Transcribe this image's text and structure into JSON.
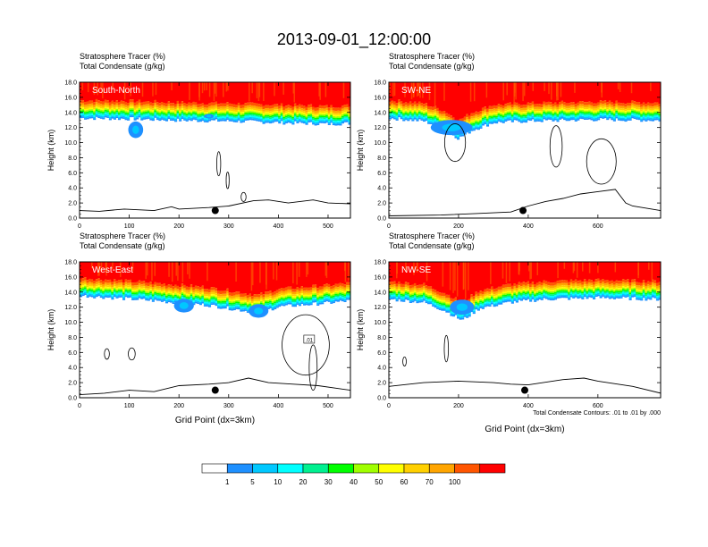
{
  "title": "2013-09-01_12:00:00",
  "footnote": "Total Condensate Contours: .01 to .01 by .000",
  "colors": {
    "levels": [
      "#ffffff",
      "#1e90ff",
      "#00c8ff",
      "#00ffff",
      "#00f090",
      "#00ff00",
      "#a0ff00",
      "#ffff00",
      "#ffd000",
      "#ffa500",
      "#ff5500",
      "#ff0000"
    ],
    "contour": "#000000",
    "terrain": "#000000",
    "marker": "#000000"
  },
  "colorbar": {
    "labels": [
      "1",
      "5",
      "10",
      "20",
      "30",
      "40",
      "50",
      "60",
      "70",
      "100"
    ]
  },
  "chart_data": [
    {
      "type": "heatmap",
      "panel_label": "South-North",
      "header_line1": "Stratosphere Tracer   (%)",
      "header_line2": "Total Condensate   (g/kg)",
      "ylabel": "Height (km)",
      "xlabel": "",
      "xlim": [
        0,
        545
      ],
      "ylim": [
        0,
        18
      ],
      "xticks": [
        "0",
        "100",
        "200",
        "300",
        "400",
        "500"
      ],
      "xtick_values": [
        0,
        100,
        200,
        300,
        400,
        500
      ],
      "yticks": [
        "0.0",
        "2.0",
        "4.0",
        "6.0",
        "8.0",
        "10.0",
        "12.0",
        "14.0",
        "16.0",
        "18.0"
      ],
      "tropopause_km": [
        [
          0,
          14.2
        ],
        [
          100,
          14.1
        ],
        [
          200,
          13.9
        ],
        [
          300,
          13.8
        ],
        [
          400,
          13.6
        ],
        [
          500,
          13.4
        ],
        [
          545,
          13.5
        ]
      ],
      "blobs": [
        {
          "x": 113,
          "y": 11.7,
          "w": 30,
          "h": 2.2
        },
        {
          "x": 260,
          "y": 13.5,
          "w": 20,
          "h": 0.6
        }
      ],
      "terrain_km": [
        [
          0,
          1.0
        ],
        [
          40,
          0.9
        ],
        [
          90,
          1.2
        ],
        [
          150,
          1.0
        ],
        [
          185,
          1.5
        ],
        [
          200,
          1.2
        ],
        [
          260,
          1.4
        ],
        [
          300,
          1.6
        ],
        [
          350,
          2.3
        ],
        [
          380,
          2.4
        ],
        [
          420,
          2.0
        ],
        [
          470,
          2.4
        ],
        [
          500,
          2.0
        ],
        [
          545,
          1.9
        ]
      ],
      "contours": [
        {
          "x": 280,
          "y": 7.2,
          "w": 8,
          "h": 3.2
        },
        {
          "x": 298,
          "y": 5.0,
          "w": 6,
          "h": 2.2
        },
        {
          "x": 330,
          "y": 2.8,
          "w": 10,
          "h": 1.2
        }
      ],
      "marker": {
        "x": 273,
        "y": 1.0
      }
    },
    {
      "type": "heatmap",
      "panel_label": "SW-NE",
      "header_line1": "Stratosphere Tracer   (%)",
      "header_line2": "Total Condensate   (g/kg)",
      "ylabel": "Height (km)",
      "xlabel": "",
      "xlim": [
        0,
        780
      ],
      "ylim": [
        0,
        18
      ],
      "xticks": [
        "0",
        "200",
        "400",
        "600"
      ],
      "xtick_values": [
        0,
        200,
        400,
        600
      ],
      "yticks": [
        "0.0",
        "2.0",
        "4.0",
        "6.0",
        "8.0",
        "10.0",
        "12.0",
        "14.0",
        "16.0",
        "18.0"
      ],
      "tropopause_km": [
        [
          0,
          14.2
        ],
        [
          100,
          13.8
        ],
        [
          160,
          12.8
        ],
        [
          200,
          11.5
        ],
        [
          240,
          12.6
        ],
        [
          300,
          13.6
        ],
        [
          400,
          13.8
        ],
        [
          600,
          14.0
        ],
        [
          780,
          13.9
        ]
      ],
      "blobs": [
        {
          "x": 180,
          "y": 12.0,
          "w": 120,
          "h": 2.0
        }
      ],
      "terrain_km": [
        [
          0,
          0.3
        ],
        [
          150,
          0.4
        ],
        [
          250,
          0.6
        ],
        [
          350,
          0.8
        ],
        [
          400,
          1.6
        ],
        [
          450,
          2.2
        ],
        [
          500,
          2.6
        ],
        [
          550,
          3.2
        ],
        [
          600,
          3.5
        ],
        [
          650,
          3.8
        ],
        [
          680,
          2.0
        ],
        [
          700,
          1.6
        ],
        [
          780,
          1.0
        ]
      ],
      "contours": [
        {
          "x": 190,
          "y": 10.0,
          "w": 60,
          "h": 5.0
        },
        {
          "x": 480,
          "y": 9.5,
          "w": 35,
          "h": 5.5
        },
        {
          "x": 610,
          "y": 7.5,
          "w": 85,
          "h": 6.0
        }
      ],
      "marker": {
        "x": 385,
        "y": 1.0
      }
    },
    {
      "type": "heatmap",
      "panel_label": "West-East",
      "header_line1": "Stratosphere Tracer   (%)",
      "header_line2": "Total Condensate   (g/kg)",
      "ylabel": "Height (km)",
      "xlabel": "Grid Point (dx=3km)",
      "xlim": [
        0,
        545
      ],
      "ylim": [
        0,
        18
      ],
      "xticks": [
        "0",
        "100",
        "200",
        "300",
        "400",
        "500"
      ],
      "xtick_values": [
        0,
        100,
        200,
        300,
        400,
        500
      ],
      "yticks": [
        "0.0",
        "2.0",
        "4.0",
        "6.0",
        "8.0",
        "10.0",
        "12.0",
        "14.0",
        "16.0",
        "18.0"
      ],
      "tropopause_km": [
        [
          0,
          14.5
        ],
        [
          150,
          13.8
        ],
        [
          260,
          13.2
        ],
        [
          360,
          12.2
        ],
        [
          400,
          13.0
        ],
        [
          500,
          13.5
        ],
        [
          545,
          13.8
        ]
      ],
      "blobs": [
        {
          "x": 210,
          "y": 12.2,
          "w": 40,
          "h": 1.8
        },
        {
          "x": 360,
          "y": 11.5,
          "w": 40,
          "h": 1.8
        }
      ],
      "terrain_km": [
        [
          0,
          0.4
        ],
        [
          50,
          0.6
        ],
        [
          100,
          1.0
        ],
        [
          150,
          0.8
        ],
        [
          200,
          1.6
        ],
        [
          260,
          1.8
        ],
        [
          300,
          2.0
        ],
        [
          340,
          2.6
        ],
        [
          380,
          2.0
        ],
        [
          430,
          1.8
        ],
        [
          480,
          1.6
        ],
        [
          545,
          1.0
        ]
      ],
      "contours": [
        {
          "x": 455,
          "y": 7.0,
          "w": 95,
          "h": 8.0
        },
        {
          "x": 470,
          "y": 4.0,
          "w": 16,
          "h": 6.0
        },
        {
          "x": 105,
          "y": 5.8,
          "w": 14,
          "h": 1.6
        },
        {
          "x": 55,
          "y": 5.8,
          "w": 10,
          "h": 1.4
        }
      ],
      "contour_label": {
        "text": ".01",
        "x": 462,
        "y": 7.7
      },
      "marker": {
        "x": 273,
        "y": 1.0
      }
    },
    {
      "type": "heatmap",
      "panel_label": "NW-SE",
      "header_line1": "Stratosphere Tracer   (%)",
      "header_line2": "Total Condensate   (g/kg)",
      "ylabel": "Height (km)",
      "xlabel": "Grid Point (dx=3km)",
      "xlim": [
        0,
        780
      ],
      "ylim": [
        0,
        18
      ],
      "xticks": [
        "0",
        "200",
        "400",
        "600"
      ],
      "xtick_values": [
        0,
        200,
        400,
        600
      ],
      "yticks": [
        "0.0",
        "2.0",
        "4.0",
        "6.0",
        "8.0",
        "10.0",
        "12.0",
        "14.0",
        "16.0",
        "18.0"
      ],
      "tropopause_km": [
        [
          0,
          14.0
        ],
        [
          100,
          13.6
        ],
        [
          160,
          12.5
        ],
        [
          210,
          11.2
        ],
        [
          260,
          12.8
        ],
        [
          350,
          13.6
        ],
        [
          450,
          14.0
        ],
        [
          600,
          14.2
        ],
        [
          780,
          14.0
        ]
      ],
      "blobs": [
        {
          "x": 210,
          "y": 12.0,
          "w": 70,
          "h": 2.0
        }
      ],
      "terrain_km": [
        [
          0,
          1.5
        ],
        [
          100,
          2.0
        ],
        [
          200,
          2.2
        ],
        [
          300,
          2.0
        ],
        [
          350,
          1.8
        ],
        [
          400,
          1.7
        ],
        [
          500,
          2.4
        ],
        [
          560,
          2.6
        ],
        [
          600,
          2.2
        ],
        [
          700,
          1.5
        ],
        [
          780,
          0.6
        ]
      ],
      "contours": [
        {
          "x": 165,
          "y": 6.5,
          "w": 12,
          "h": 3.5
        },
        {
          "x": 45,
          "y": 4.8,
          "w": 10,
          "h": 1.2
        }
      ],
      "marker": {
        "x": 390,
        "y": 1.0
      }
    }
  ]
}
